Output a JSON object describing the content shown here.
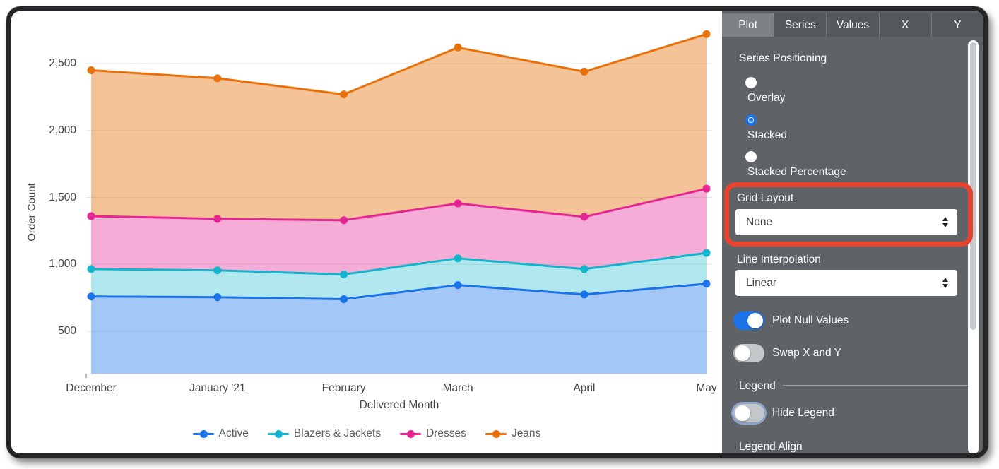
{
  "chart": {
    "y_axis_title": "Order Count",
    "x_axis_title": "Delivered Month",
    "y_tick_labels": [
      "2,500",
      "2,000",
      "1,500",
      "1,000",
      "500"
    ],
    "x_labels": [
      "December",
      "January '21",
      "February",
      "March",
      "April",
      "May"
    ],
    "legend": [
      {
        "label": "Active",
        "color": "#1a73e8"
      },
      {
        "label": "Blazers & Jackets",
        "color": "#12b5cb"
      },
      {
        "label": "Dresses",
        "color": "#e52592"
      },
      {
        "label": "Jeans",
        "color": "#e8710a"
      }
    ]
  },
  "chart_data": {
    "type": "area",
    "stacking": "stacked",
    "title": "",
    "xlabel": "Delivered Month",
    "ylabel": "Order Count",
    "categories": [
      "December",
      "January '21",
      "February",
      "March",
      "April",
      "May"
    ],
    "x_day_offsets": [
      0,
      31,
      62,
      90,
      121,
      151
    ],
    "y_ticks": [
      2500,
      2000,
      1500,
      1000,
      500
    ],
    "ylim_rendered": [
      190,
      2880
    ],
    "grid": "horizontal",
    "legend_position": "bottom-center",
    "series": [
      {
        "name": "Active",
        "color": "#1a73e8",
        "fill_rgba": "rgba(26,115,232,0.40)",
        "values": [
          760,
          755,
          740,
          845,
          775,
          855
        ],
        "stack_top": [
          760,
          755,
          740,
          845,
          775,
          855
        ]
      },
      {
        "name": "Blazers & Jackets",
        "color": "#12b5cb",
        "fill_rgba": "rgba(18,181,203,0.33)",
        "values": [
          205,
          200,
          185,
          200,
          190,
          230
        ],
        "stack_top": [
          965,
          955,
          925,
          1045,
          965,
          1085
        ]
      },
      {
        "name": "Dresses",
        "color": "#e52592",
        "fill_rgba": "rgba(229,37,146,0.38)",
        "values": [
          395,
          385,
          405,
          410,
          390,
          480
        ],
        "stack_top": [
          1360,
          1340,
          1330,
          1455,
          1355,
          1565
        ]
      },
      {
        "name": "Jeans",
        "color": "#e8710a",
        "fill_rgba": "rgba(232,113,10,0.42)",
        "values": [
          1090,
          1050,
          940,
          1165,
          1085,
          1155
        ],
        "stack_top": [
          2450,
          2390,
          2270,
          2620,
          2440,
          2720
        ]
      }
    ]
  },
  "panel": {
    "tabs": [
      {
        "label": "Plot",
        "active": true
      },
      {
        "label": "Series",
        "active": false
      },
      {
        "label": "Values",
        "active": false
      },
      {
        "label": "X",
        "active": false
      },
      {
        "label": "Y",
        "active": false
      }
    ],
    "series_positioning": {
      "label": "Series Positioning",
      "options": [
        {
          "label": "Overlay",
          "selected": false
        },
        {
          "label": "Stacked",
          "selected": true
        },
        {
          "label": "Stacked Percentage",
          "selected": false
        }
      ]
    },
    "grid_layout": {
      "label": "Grid Layout",
      "value": "None"
    },
    "line_interpolation": {
      "label": "Line Interpolation",
      "value": "Linear"
    },
    "plot_null_values": {
      "label": "Plot Null Values",
      "on": true
    },
    "swap_x_and_y": {
      "label": "Swap X and Y",
      "on": false
    },
    "legend_section": {
      "label": "Legend"
    },
    "hide_legend": {
      "label": "Hide Legend",
      "on": false
    },
    "legend_align_label": "Legend Align"
  },
  "annotation": {
    "shape": "rounded-rectangle",
    "color": "#e8432f",
    "target": "Grid Layout control"
  }
}
